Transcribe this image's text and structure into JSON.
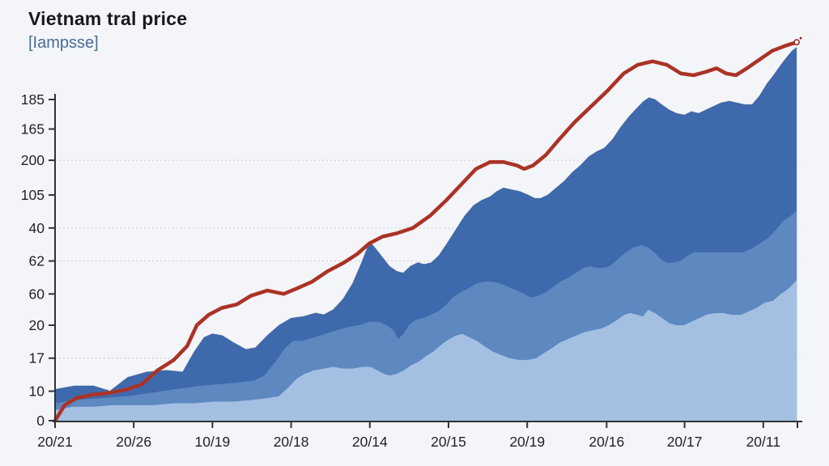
{
  "chart": {
    "title": "Vietnam tral price",
    "subtitle": "[Iampsse]",
    "colors": {
      "background": "#f3f5f8",
      "title": "#17191d",
      "subtitle": "#486c94",
      "area_dark": "#3e69ad",
      "area_dark_edge": "#31548c",
      "area_mid": "#5e88c0",
      "area_light": "#a3c0e3",
      "line": "#b0362a",
      "line_core": "#9c2d22",
      "axis": "#303236",
      "grid": "#cfd2d6",
      "tick_label": "#1f2227"
    }
  },
  "chart_data": {
    "type": "area",
    "note": "stacked area bands with an overlaid line; source axis tick labels are garbled and non-monotonic, values use a nominal scale",
    "x_unit": "percent of plot width (0-100)",
    "y_unit": "axis units where baseline=0 and top tick labeled 185 = 185",
    "x_ticks": [
      {
        "label": "20/21",
        "x": 0
      },
      {
        "label": "20/26",
        "x": 10.6
      },
      {
        "label": "10/19",
        "x": 21.2
      },
      {
        "label": "20/18",
        "x": 31.8
      },
      {
        "label": "20/14",
        "x": 42.4
      },
      {
        "label": "20/15",
        "x": 53.0
      },
      {
        "label": "20/19",
        "x": 63.6
      },
      {
        "label": "20/16",
        "x": 74.3
      },
      {
        "label": "20/17",
        "x": 84.8
      },
      {
        "label": "20/11",
        "x": 95.4
      },
      {
        "label": "",
        "x": 100
      }
    ],
    "y_ticks": [
      {
        "label": "185",
        "v": 185
      },
      {
        "label": "165",
        "v": 168
      },
      {
        "label": "200",
        "v": 150
      },
      {
        "label": "105",
        "v": 130
      },
      {
        "label": "40",
        "v": 111
      },
      {
        "label": "62",
        "v": 92
      },
      {
        "label": "60",
        "v": 73
      },
      {
        "label": "20",
        "v": 55
      },
      {
        "label": "17",
        "v": 36
      },
      {
        "label": "10",
        "v": 17
      },
      {
        "label": "0",
        "v": 0
      }
    ],
    "gridlines_v": [
      150,
      111,
      92,
      36
    ],
    "series": [
      {
        "name": "band-dark",
        "type": "area",
        "color_key": "area_dark",
        "edge_key": "area_dark_edge",
        "points": [
          [
            0,
            18
          ],
          [
            2.6,
            20
          ],
          [
            5.2,
            20
          ],
          [
            7.4,
            17
          ],
          [
            9.8,
            25
          ],
          [
            12.4,
            28
          ],
          [
            15,
            29
          ],
          [
            17.2,
            28
          ],
          [
            18.8,
            40
          ],
          [
            20.1,
            48
          ],
          [
            21.2,
            50
          ],
          [
            22.5,
            49
          ],
          [
            24,
            45
          ],
          [
            25.7,
            41
          ],
          [
            27,
            42
          ],
          [
            28.6,
            49
          ],
          [
            30.2,
            55
          ],
          [
            31.8,
            59
          ],
          [
            33.5,
            60
          ],
          [
            35.1,
            62
          ],
          [
            36.2,
            61
          ],
          [
            37.5,
            64
          ],
          [
            38.8,
            70
          ],
          [
            40.1,
            79
          ],
          [
            41.2,
            90
          ],
          [
            42.4,
            103
          ],
          [
            43.2,
            99
          ],
          [
            44.1,
            94
          ],
          [
            45,
            89
          ],
          [
            46,
            86
          ],
          [
            46.9,
            85
          ],
          [
            47.9,
            89
          ],
          [
            48.9,
            91
          ],
          [
            49.7,
            90
          ],
          [
            50.7,
            91
          ],
          [
            51.7,
            95
          ],
          [
            52.8,
            102
          ],
          [
            54,
            110
          ],
          [
            55.2,
            118
          ],
          [
            56.4,
            124
          ],
          [
            57.5,
            127
          ],
          [
            58.6,
            129
          ],
          [
            59.5,
            132
          ],
          [
            60.4,
            134
          ],
          [
            61.5,
            133
          ],
          [
            62.6,
            132
          ],
          [
            63.7,
            130
          ],
          [
            64.6,
            128
          ],
          [
            65.4,
            128
          ],
          [
            66.4,
            130
          ],
          [
            67.5,
            134
          ],
          [
            68.6,
            138
          ],
          [
            69.7,
            143
          ],
          [
            70.8,
            147
          ],
          [
            71.9,
            152
          ],
          [
            73,
            155
          ],
          [
            74,
            157
          ],
          [
            75.1,
            162
          ],
          [
            76.2,
            169
          ],
          [
            77.3,
            175
          ],
          [
            78.4,
            180
          ],
          [
            79.3,
            184
          ],
          [
            80,
            186
          ],
          [
            80.8,
            185
          ],
          [
            81.7,
            182
          ],
          [
            82.7,
            179
          ],
          [
            83.7,
            177
          ],
          [
            84.8,
            176
          ],
          [
            85.7,
            178
          ],
          [
            86.7,
            177
          ],
          [
            87.7,
            179
          ],
          [
            88.7,
            181
          ],
          [
            89.7,
            183
          ],
          [
            90.8,
            184
          ],
          [
            91.9,
            183
          ],
          [
            92.9,
            182
          ],
          [
            93.9,
            182
          ],
          [
            94.9,
            187
          ],
          [
            95.9,
            194
          ],
          [
            96.8,
            199
          ],
          [
            97.8,
            205
          ],
          [
            98.7,
            210
          ],
          [
            99.3,
            213
          ],
          [
            99.9,
            215
          ]
        ]
      },
      {
        "name": "band-mid",
        "type": "area",
        "color_key": "area_mid",
        "points": [
          [
            0,
            10
          ],
          [
            2.9,
            12
          ],
          [
            6.2,
            13
          ],
          [
            9.5,
            14
          ],
          [
            12.8,
            16
          ],
          [
            16,
            18
          ],
          [
            19.3,
            20
          ],
          [
            22,
            21
          ],
          [
            24.8,
            22
          ],
          [
            26.7,
            23
          ],
          [
            28.2,
            26
          ],
          [
            29.7,
            34
          ],
          [
            31,
            42
          ],
          [
            32.1,
            46
          ],
          [
            33.4,
            46
          ],
          [
            34.9,
            48
          ],
          [
            36.4,
            50
          ],
          [
            37.9,
            52
          ],
          [
            39.5,
            54
          ],
          [
            41,
            55
          ],
          [
            42.3,
            57
          ],
          [
            43.6,
            57
          ],
          [
            44.7,
            55
          ],
          [
            45.6,
            52
          ],
          [
            46.2,
            47
          ],
          [
            46.9,
            50
          ],
          [
            47.7,
            55
          ],
          [
            48.5,
            58
          ],
          [
            49.5,
            59
          ],
          [
            50.6,
            61
          ],
          [
            51.7,
            63
          ],
          [
            52.7,
            67
          ],
          [
            53.6,
            71
          ],
          [
            54.6,
            74
          ],
          [
            55.6,
            76
          ],
          [
            56.7,
            79
          ],
          [
            57.8,
            80
          ],
          [
            58.9,
            80
          ],
          [
            60,
            79
          ],
          [
            61.1,
            77
          ],
          [
            62.2,
            75
          ],
          [
            63.2,
            73
          ],
          [
            64.1,
            71
          ],
          [
            65.1,
            72
          ],
          [
            66.1,
            74
          ],
          [
            67.1,
            77
          ],
          [
            68,
            80
          ],
          [
            69,
            82
          ],
          [
            70.1,
            85
          ],
          [
            71.2,
            88
          ],
          [
            72.1,
            89
          ],
          [
            73,
            88
          ],
          [
            73.8,
            88
          ],
          [
            74.7,
            89
          ],
          [
            75.8,
            93
          ],
          [
            76.9,
            97
          ],
          [
            78,
            100
          ],
          [
            79,
            101
          ],
          [
            79.8,
            100
          ],
          [
            80.7,
            97
          ],
          [
            81.6,
            93
          ],
          [
            82.4,
            91
          ],
          [
            83.3,
            91
          ],
          [
            84.2,
            92
          ],
          [
            85.2,
            95
          ],
          [
            86.1,
            97
          ],
          [
            87.2,
            97
          ],
          [
            88.3,
            97
          ],
          [
            89.4,
            97
          ],
          [
            90.5,
            97
          ],
          [
            91.6,
            97
          ],
          [
            92.7,
            97
          ],
          [
            93.8,
            99
          ],
          [
            94.9,
            102
          ],
          [
            96,
            105
          ],
          [
            97.1,
            110
          ],
          [
            98.1,
            115
          ],
          [
            99.1,
            118
          ],
          [
            99.9,
            121
          ]
        ]
      },
      {
        "name": "band-light",
        "type": "area",
        "color_key": "area_light",
        "points": [
          [
            0,
            6
          ],
          [
            2.4,
            8
          ],
          [
            5.1,
            8
          ],
          [
            7.9,
            9
          ],
          [
            10.6,
            9
          ],
          [
            13.3,
            9
          ],
          [
            16,
            10
          ],
          [
            18.8,
            10
          ],
          [
            21.5,
            11
          ],
          [
            24.2,
            11
          ],
          [
            26.6,
            12
          ],
          [
            28.6,
            13
          ],
          [
            30.1,
            14
          ],
          [
            31.4,
            19
          ],
          [
            32.5,
            24
          ],
          [
            33.6,
            27
          ],
          [
            34.9,
            29
          ],
          [
            36.2,
            30
          ],
          [
            37.5,
            31
          ],
          [
            38.8,
            30
          ],
          [
            40.1,
            30
          ],
          [
            41.4,
            31
          ],
          [
            42.5,
            31
          ],
          [
            43.4,
            29
          ],
          [
            44.3,
            27
          ],
          [
            45.1,
            26
          ],
          [
            46,
            27
          ],
          [
            47,
            29
          ],
          [
            48,
            32
          ],
          [
            49,
            34
          ],
          [
            49.9,
            37
          ],
          [
            51,
            40
          ],
          [
            52.1,
            44
          ],
          [
            53.1,
            47
          ],
          [
            54,
            49
          ],
          [
            54.9,
            50
          ],
          [
            55.8,
            48
          ],
          [
            56.8,
            46
          ],
          [
            57.8,
            43
          ],
          [
            58.9,
            40
          ],
          [
            60,
            38
          ],
          [
            61.2,
            36
          ],
          [
            62.4,
            35
          ],
          [
            63.7,
            35
          ],
          [
            64.8,
            36
          ],
          [
            65.9,
            39
          ],
          [
            67,
            42
          ],
          [
            68,
            45
          ],
          [
            69.1,
            47
          ],
          [
            70.2,
            49
          ],
          [
            71.3,
            51
          ],
          [
            72.4,
            52
          ],
          [
            73.5,
            53
          ],
          [
            74.6,
            55
          ],
          [
            75.7,
            58
          ],
          [
            76.7,
            61
          ],
          [
            77.5,
            62
          ],
          [
            78.4,
            61
          ],
          [
            79.2,
            60
          ],
          [
            79.9,
            64
          ],
          [
            80.8,
            62
          ],
          [
            81.8,
            59
          ],
          [
            82.8,
            56
          ],
          [
            83.7,
            55
          ],
          [
            84.7,
            55
          ],
          [
            85.7,
            57
          ],
          [
            86.7,
            59
          ],
          [
            87.7,
            61
          ],
          [
            88.8,
            62
          ],
          [
            90,
            62
          ],
          [
            91.2,
            61
          ],
          [
            92.4,
            61
          ],
          [
            93.5,
            63
          ],
          [
            94.5,
            65
          ],
          [
            95.6,
            68
          ],
          [
            96.7,
            69
          ],
          [
            97.8,
            73
          ],
          [
            98.8,
            76
          ],
          [
            99.9,
            81
          ]
        ]
      },
      {
        "name": "price-line",
        "type": "line",
        "color_key": "line",
        "end_marker": true,
        "points": [
          [
            0,
            0
          ],
          [
            1.3,
            9
          ],
          [
            2.9,
            13
          ],
          [
            5.1,
            15
          ],
          [
            7.3,
            16
          ],
          [
            9.7,
            18
          ],
          [
            11.7,
            21
          ],
          [
            13.8,
            29
          ],
          [
            16,
            35
          ],
          [
            17.8,
            43
          ],
          [
            19.1,
            55
          ],
          [
            20.7,
            61
          ],
          [
            22.5,
            65
          ],
          [
            24.5,
            67
          ],
          [
            26.4,
            72
          ],
          [
            28.6,
            75
          ],
          [
            30.8,
            73
          ],
          [
            32.5,
            76
          ],
          [
            34.6,
            80
          ],
          [
            36.7,
            86
          ],
          [
            38.9,
            91
          ],
          [
            40.7,
            96
          ],
          [
            42.3,
            102
          ],
          [
            44.1,
            106
          ],
          [
            46.1,
            108
          ],
          [
            48.2,
            111
          ],
          [
            50.5,
            118
          ],
          [
            52.7,
            127
          ],
          [
            54.7,
            136
          ],
          [
            56.7,
            145
          ],
          [
            58.6,
            149
          ],
          [
            60.4,
            149
          ],
          [
            62.2,
            147
          ],
          [
            63.2,
            145
          ],
          [
            64.4,
            147
          ],
          [
            66.1,
            153
          ],
          [
            67.9,
            162
          ],
          [
            70,
            172
          ],
          [
            72.2,
            181
          ],
          [
            74.4,
            190
          ],
          [
            76.6,
            200
          ],
          [
            78.5,
            205
          ],
          [
            80.5,
            207
          ],
          [
            82.4,
            205
          ],
          [
            84.3,
            200
          ],
          [
            86,
            199
          ],
          [
            87.7,
            201
          ],
          [
            89.1,
            203
          ],
          [
            90.4,
            200
          ],
          [
            91.7,
            199
          ],
          [
            93.2,
            203
          ],
          [
            94.9,
            208
          ],
          [
            96.6,
            213
          ],
          [
            98.4,
            216
          ],
          [
            99.9,
            218
          ]
        ]
      }
    ]
  }
}
